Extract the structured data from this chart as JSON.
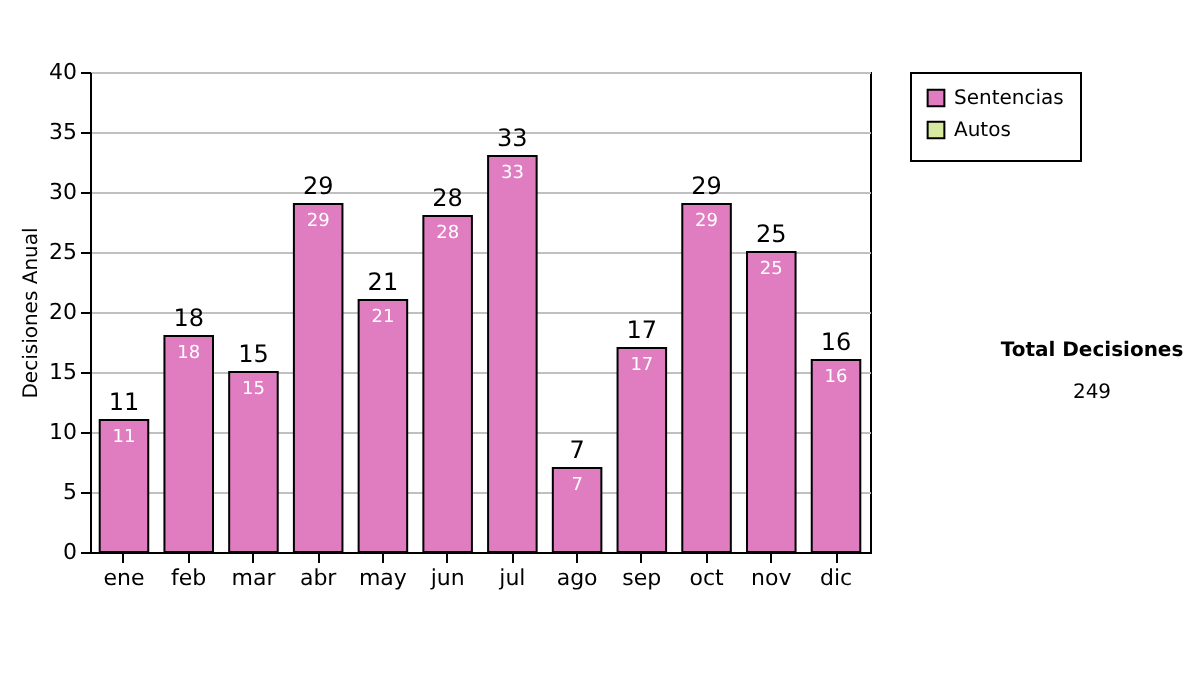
{
  "chart_data": {
    "type": "bar",
    "ylabel": "Decisiones Anual",
    "categories": [
      "ene",
      "feb",
      "mar",
      "abr",
      "may",
      "jun",
      "jul",
      "ago",
      "sep",
      "oct",
      "nov",
      "dic"
    ],
    "series": [
      {
        "name": "Sentencias",
        "color": "#e07cc0",
        "values": [
          11,
          18,
          15,
          29,
          21,
          28,
          33,
          7,
          17,
          29,
          25,
          16
        ]
      },
      {
        "name": "Autos",
        "color": "#d8eaa0",
        "values": [
          null,
          null,
          null,
          null,
          null,
          null,
          null,
          null,
          null,
          null,
          null,
          null
        ]
      }
    ],
    "stacked": true,
    "data_labels": true,
    "totals": [
      "11",
      "18",
      "15",
      "29",
      "21",
      "28",
      "33",
      "7",
      "17",
      "29",
      "25",
      "16"
    ],
    "ylim": [
      0,
      40
    ],
    "yticks": [
      0,
      5,
      10,
      15,
      20,
      25,
      30,
      35,
      40
    ],
    "grid": "y",
    "legend": "right",
    "annotations": [
      "Total Decisiones",
      "249"
    ]
  }
}
